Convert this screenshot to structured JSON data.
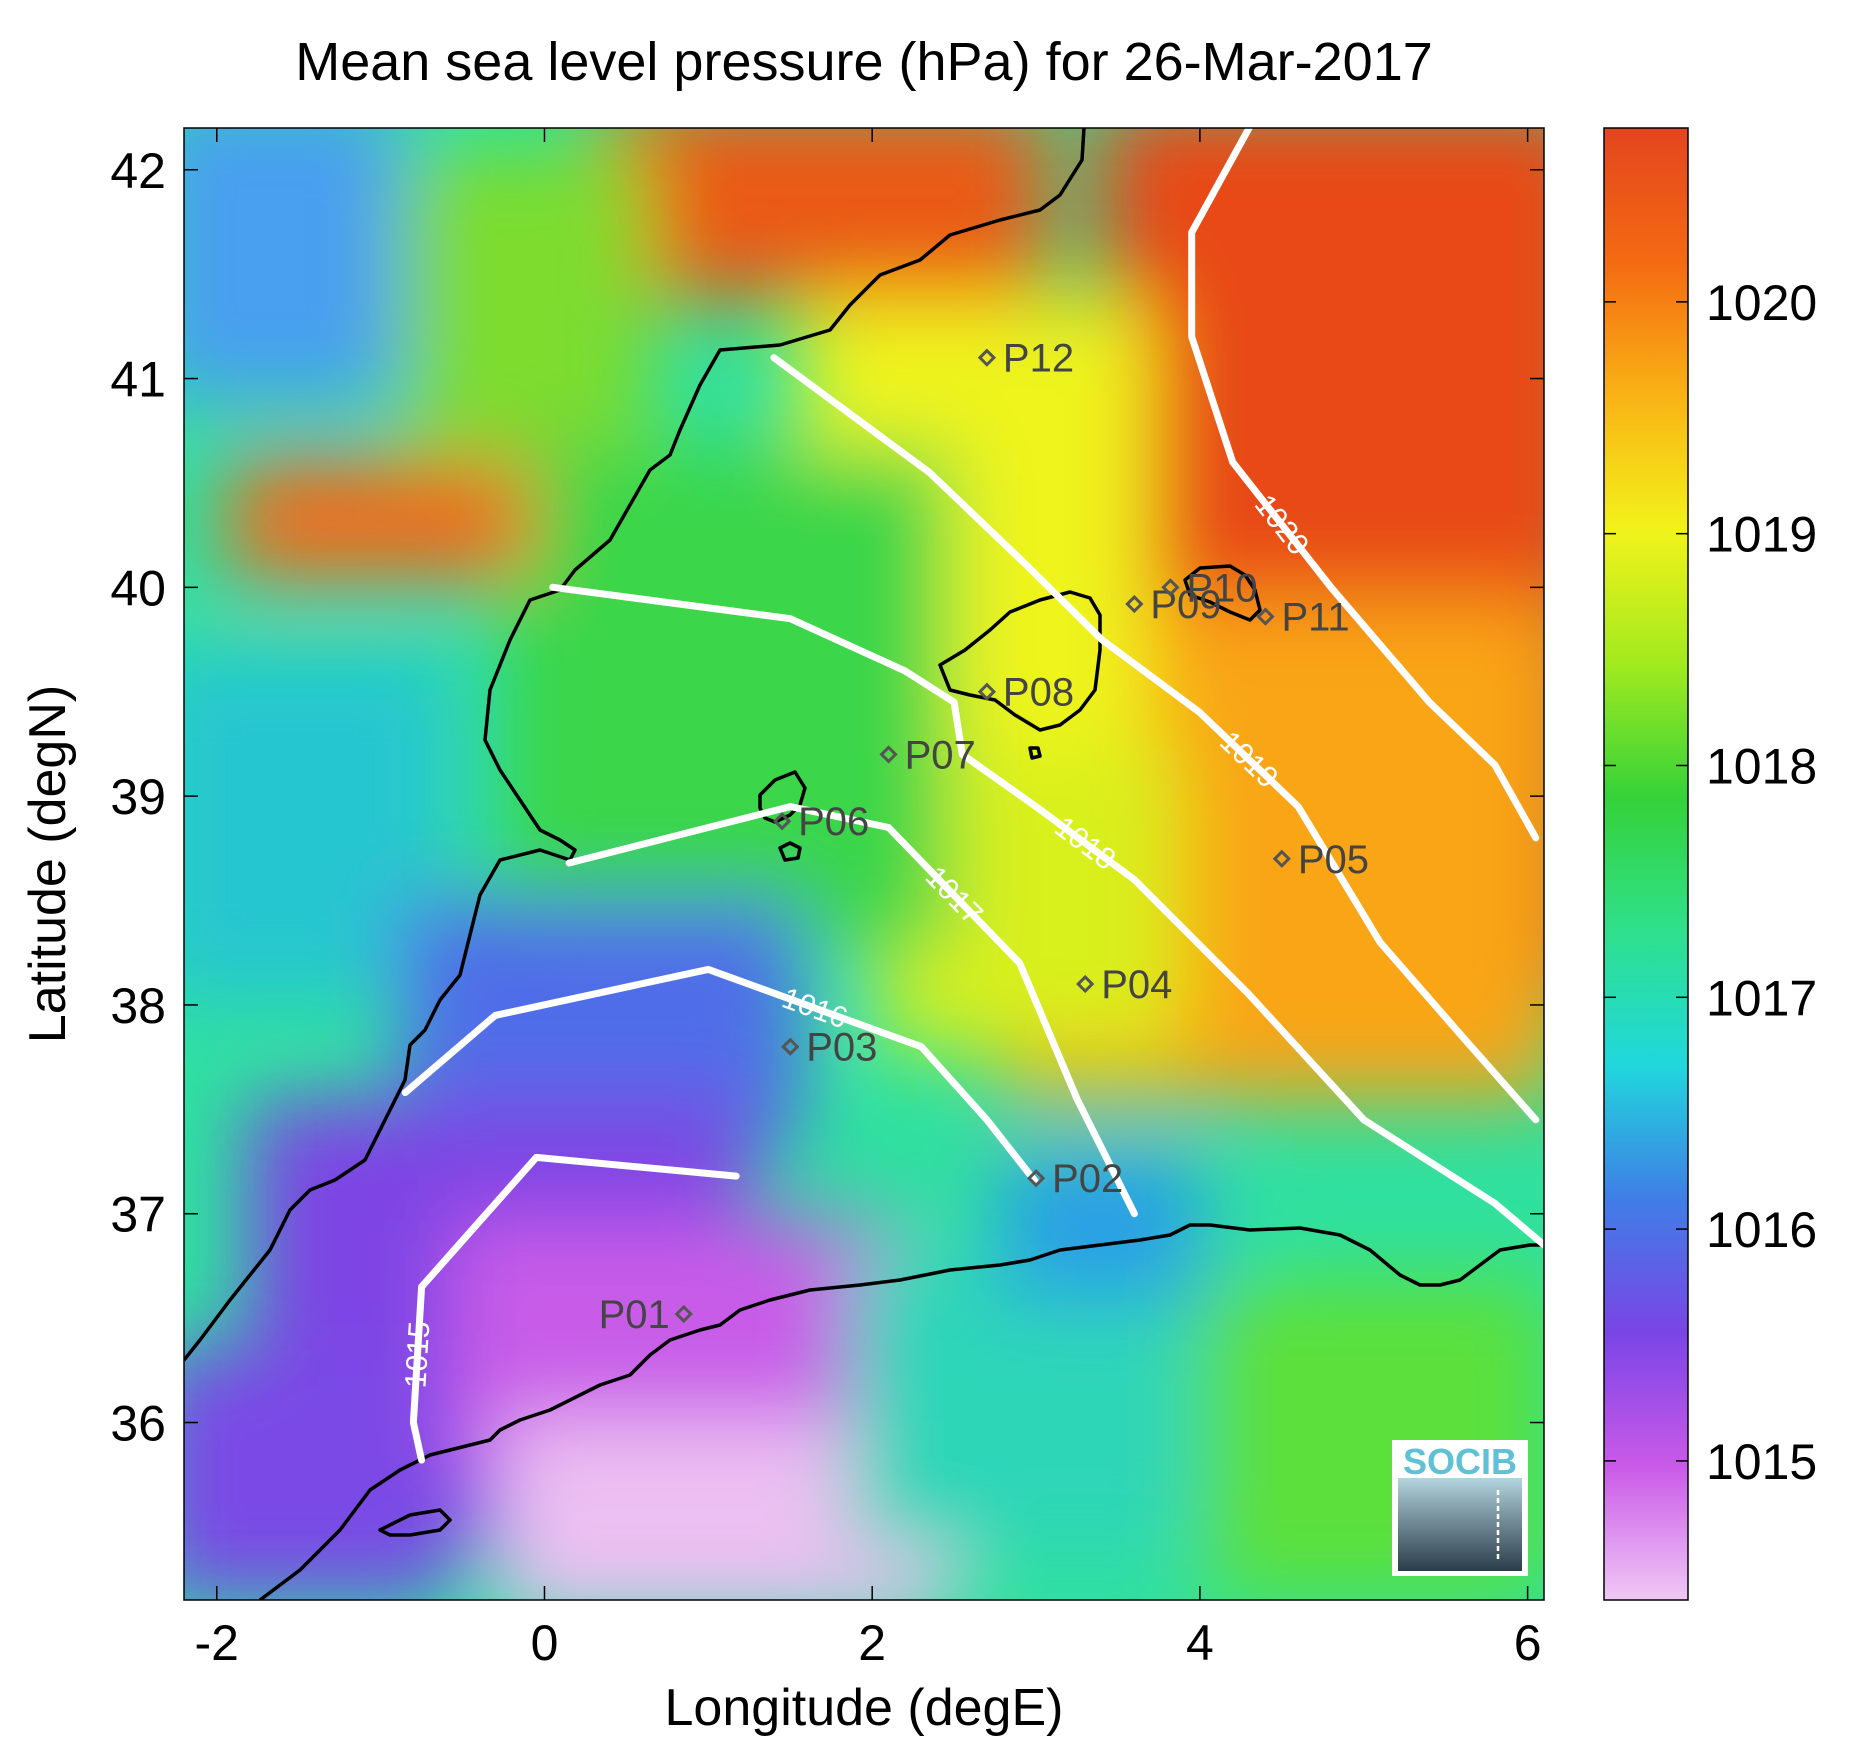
{
  "title": "Mean sea level pressure (hPa) for 26-Mar-2017",
  "chart_data": {
    "type": "heatmap",
    "title": "Mean sea level pressure (hPa) for 26-Mar-2017",
    "xlabel": "Longitude (degE)",
    "ylabel": "Latitude (degN)",
    "xlim": [
      -2.2,
      6.1
    ],
    "ylim": [
      35.15,
      42.2
    ],
    "x_ticks": [
      -2,
      0,
      2,
      4,
      6
    ],
    "y_ticks": [
      36,
      37,
      38,
      39,
      40,
      41,
      42
    ],
    "colorbar": {
      "range": [
        1014.4,
        1020.75
      ],
      "ticks": [
        1015,
        1016,
        1017,
        1018,
        1019,
        1020
      ],
      "colormap": [
        "#f0c8f5",
        "#c95ae8",
        "#7a45e6",
        "#3f7ee6",
        "#20d8dc",
        "#2fe08c",
        "#35d23a",
        "#a2ea1e",
        "#f2f21b",
        "#f9b315",
        "#f46a12",
        "#e3451e"
      ]
    },
    "contours": [
      {
        "level": 1015,
        "label": "1015",
        "points": [
          [
            1.17,
            37.18
          ],
          [
            -0.05,
            37.27
          ],
          [
            -0.75,
            36.65
          ],
          [
            -0.8,
            36.0
          ],
          [
            -0.75,
            35.82
          ]
        ]
      },
      {
        "level": 1016,
        "label": "1016",
        "points": [
          [
            -0.85,
            37.58
          ],
          [
            -0.3,
            37.95
          ],
          [
            1.0,
            38.17
          ],
          [
            2.3,
            37.8
          ],
          [
            2.7,
            37.45
          ],
          [
            3.0,
            37.15
          ]
        ]
      },
      {
        "level": 1017,
        "label": "1017",
        "points": [
          [
            0.15,
            38.68
          ],
          [
            1.5,
            38.95
          ],
          [
            2.1,
            38.85
          ],
          [
            2.9,
            38.2
          ],
          [
            3.25,
            37.55
          ],
          [
            3.6,
            37.0
          ]
        ]
      },
      {
        "level": 1018,
        "label": "1018",
        "points": [
          [
            0.05,
            40.0
          ],
          [
            1.5,
            39.85
          ],
          [
            2.2,
            39.6
          ],
          [
            2.5,
            39.45
          ],
          [
            2.55,
            39.2
          ],
          [
            3.0,
            38.95
          ],
          [
            3.6,
            38.6
          ],
          [
            4.3,
            38.05
          ],
          [
            5.0,
            37.45
          ],
          [
            5.8,
            37.05
          ],
          [
            6.1,
            36.85
          ]
        ]
      },
      {
        "level": 1019,
        "label": "1019",
        "points": [
          [
            1.4,
            41.1
          ],
          [
            2.35,
            40.55
          ],
          [
            2.95,
            40.1
          ],
          [
            3.4,
            39.75
          ],
          [
            4.0,
            39.4
          ],
          [
            4.6,
            38.95
          ],
          [
            5.1,
            38.3
          ],
          [
            5.6,
            37.85
          ],
          [
            6.05,
            37.45
          ]
        ]
      },
      {
        "level": 1020,
        "label": "1020",
        "points": [
          [
            4.3,
            42.2
          ],
          [
            3.95,
            41.7
          ],
          [
            3.95,
            41.2
          ],
          [
            4.2,
            40.6
          ],
          [
            4.8,
            40.0
          ],
          [
            5.4,
            39.45
          ],
          [
            5.8,
            39.15
          ],
          [
            6.05,
            38.8
          ]
        ]
      }
    ],
    "stations": [
      {
        "name": "P01",
        "lon": 0.85,
        "lat": 36.52
      },
      {
        "name": "P02",
        "lon": 3.0,
        "lat": 37.17
      },
      {
        "name": "P03",
        "lon": 1.5,
        "lat": 37.8
      },
      {
        "name": "P04",
        "lon": 3.3,
        "lat": 38.1
      },
      {
        "name": "P05",
        "lon": 4.5,
        "lat": 38.7
      },
      {
        "name": "P06",
        "lon": 1.45,
        "lat": 38.88
      },
      {
        "name": "P07",
        "lon": 2.1,
        "lat": 39.2
      },
      {
        "name": "P08",
        "lon": 2.7,
        "lat": 39.5
      },
      {
        "name": "P09",
        "lon": 3.6,
        "lat": 39.92
      },
      {
        "name": "P10",
        "lon": 3.82,
        "lat": 40.0
      },
      {
        "name": "P11",
        "lon": 4.4,
        "lat": 39.86
      },
      {
        "name": "P12",
        "lon": 2.7,
        "lat": 41.1
      }
    ]
  },
  "logo": {
    "text": "SOCIB"
  }
}
